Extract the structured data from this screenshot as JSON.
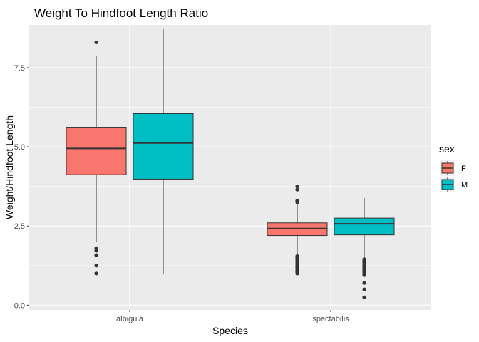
{
  "chart_data": {
    "type": "boxplot",
    "title": "Weight To Hindfoot Length Ratio",
    "xlabel": "Species",
    "ylabel": "Weight/Hindfoot Length",
    "categories": [
      "albigula",
      "spectabilis"
    ],
    "ylim": [
      -0.15,
      8.85
    ],
    "yticks": [
      0.0,
      2.5,
      5.0,
      7.5
    ],
    "ytick_labels": [
      "0.0",
      "2.5",
      "5.0",
      "7.5"
    ],
    "grid": true,
    "legend": {
      "title": "sex",
      "placement": "right",
      "entries": [
        {
          "label": "F",
          "color": "#F8766D"
        },
        {
          "label": "M",
          "color": "#00BFC4"
        }
      ]
    },
    "series": [
      {
        "name": "F",
        "color": "#F8766D",
        "boxes": [
          {
            "category": "albigula",
            "lower_whisker": 2.0,
            "q1": 4.12,
            "median": 4.95,
            "q3": 5.62,
            "upper_whisker": 7.88,
            "outliers": [
              8.3,
              1.8,
              1.72,
              1.58,
              1.25,
              1.0
            ]
          },
          {
            "category": "spectabilis",
            "lower_whisker": 1.55,
            "q1": 2.2,
            "median": 2.42,
            "q3": 2.6,
            "upper_whisker": 3.2,
            "outliers": [
              3.75,
              3.65,
              3.3,
              3.25,
              1.55,
              1.5,
              1.45,
              1.4,
              1.35,
              1.3,
              1.25,
              1.2,
              1.15,
              1.1,
              1.05,
              1.0
            ]
          }
        ]
      },
      {
        "name": "M",
        "color": "#00BFC4",
        "boxes": [
          {
            "category": "albigula",
            "lower_whisker": 1.0,
            "q1": 3.98,
            "median": 5.12,
            "q3": 6.05,
            "upper_whisker": 8.72,
            "outliers": []
          },
          {
            "category": "spectabilis",
            "lower_whisker": 1.5,
            "q1": 2.22,
            "median": 2.57,
            "q3": 2.75,
            "upper_whisker": 3.38,
            "outliers": [
              1.45,
              1.4,
              1.35,
              1.3,
              1.25,
              1.2,
              1.15,
              1.1,
              1.05,
              1.0,
              0.95,
              0.7,
              0.5,
              0.25
            ]
          }
        ]
      }
    ]
  }
}
